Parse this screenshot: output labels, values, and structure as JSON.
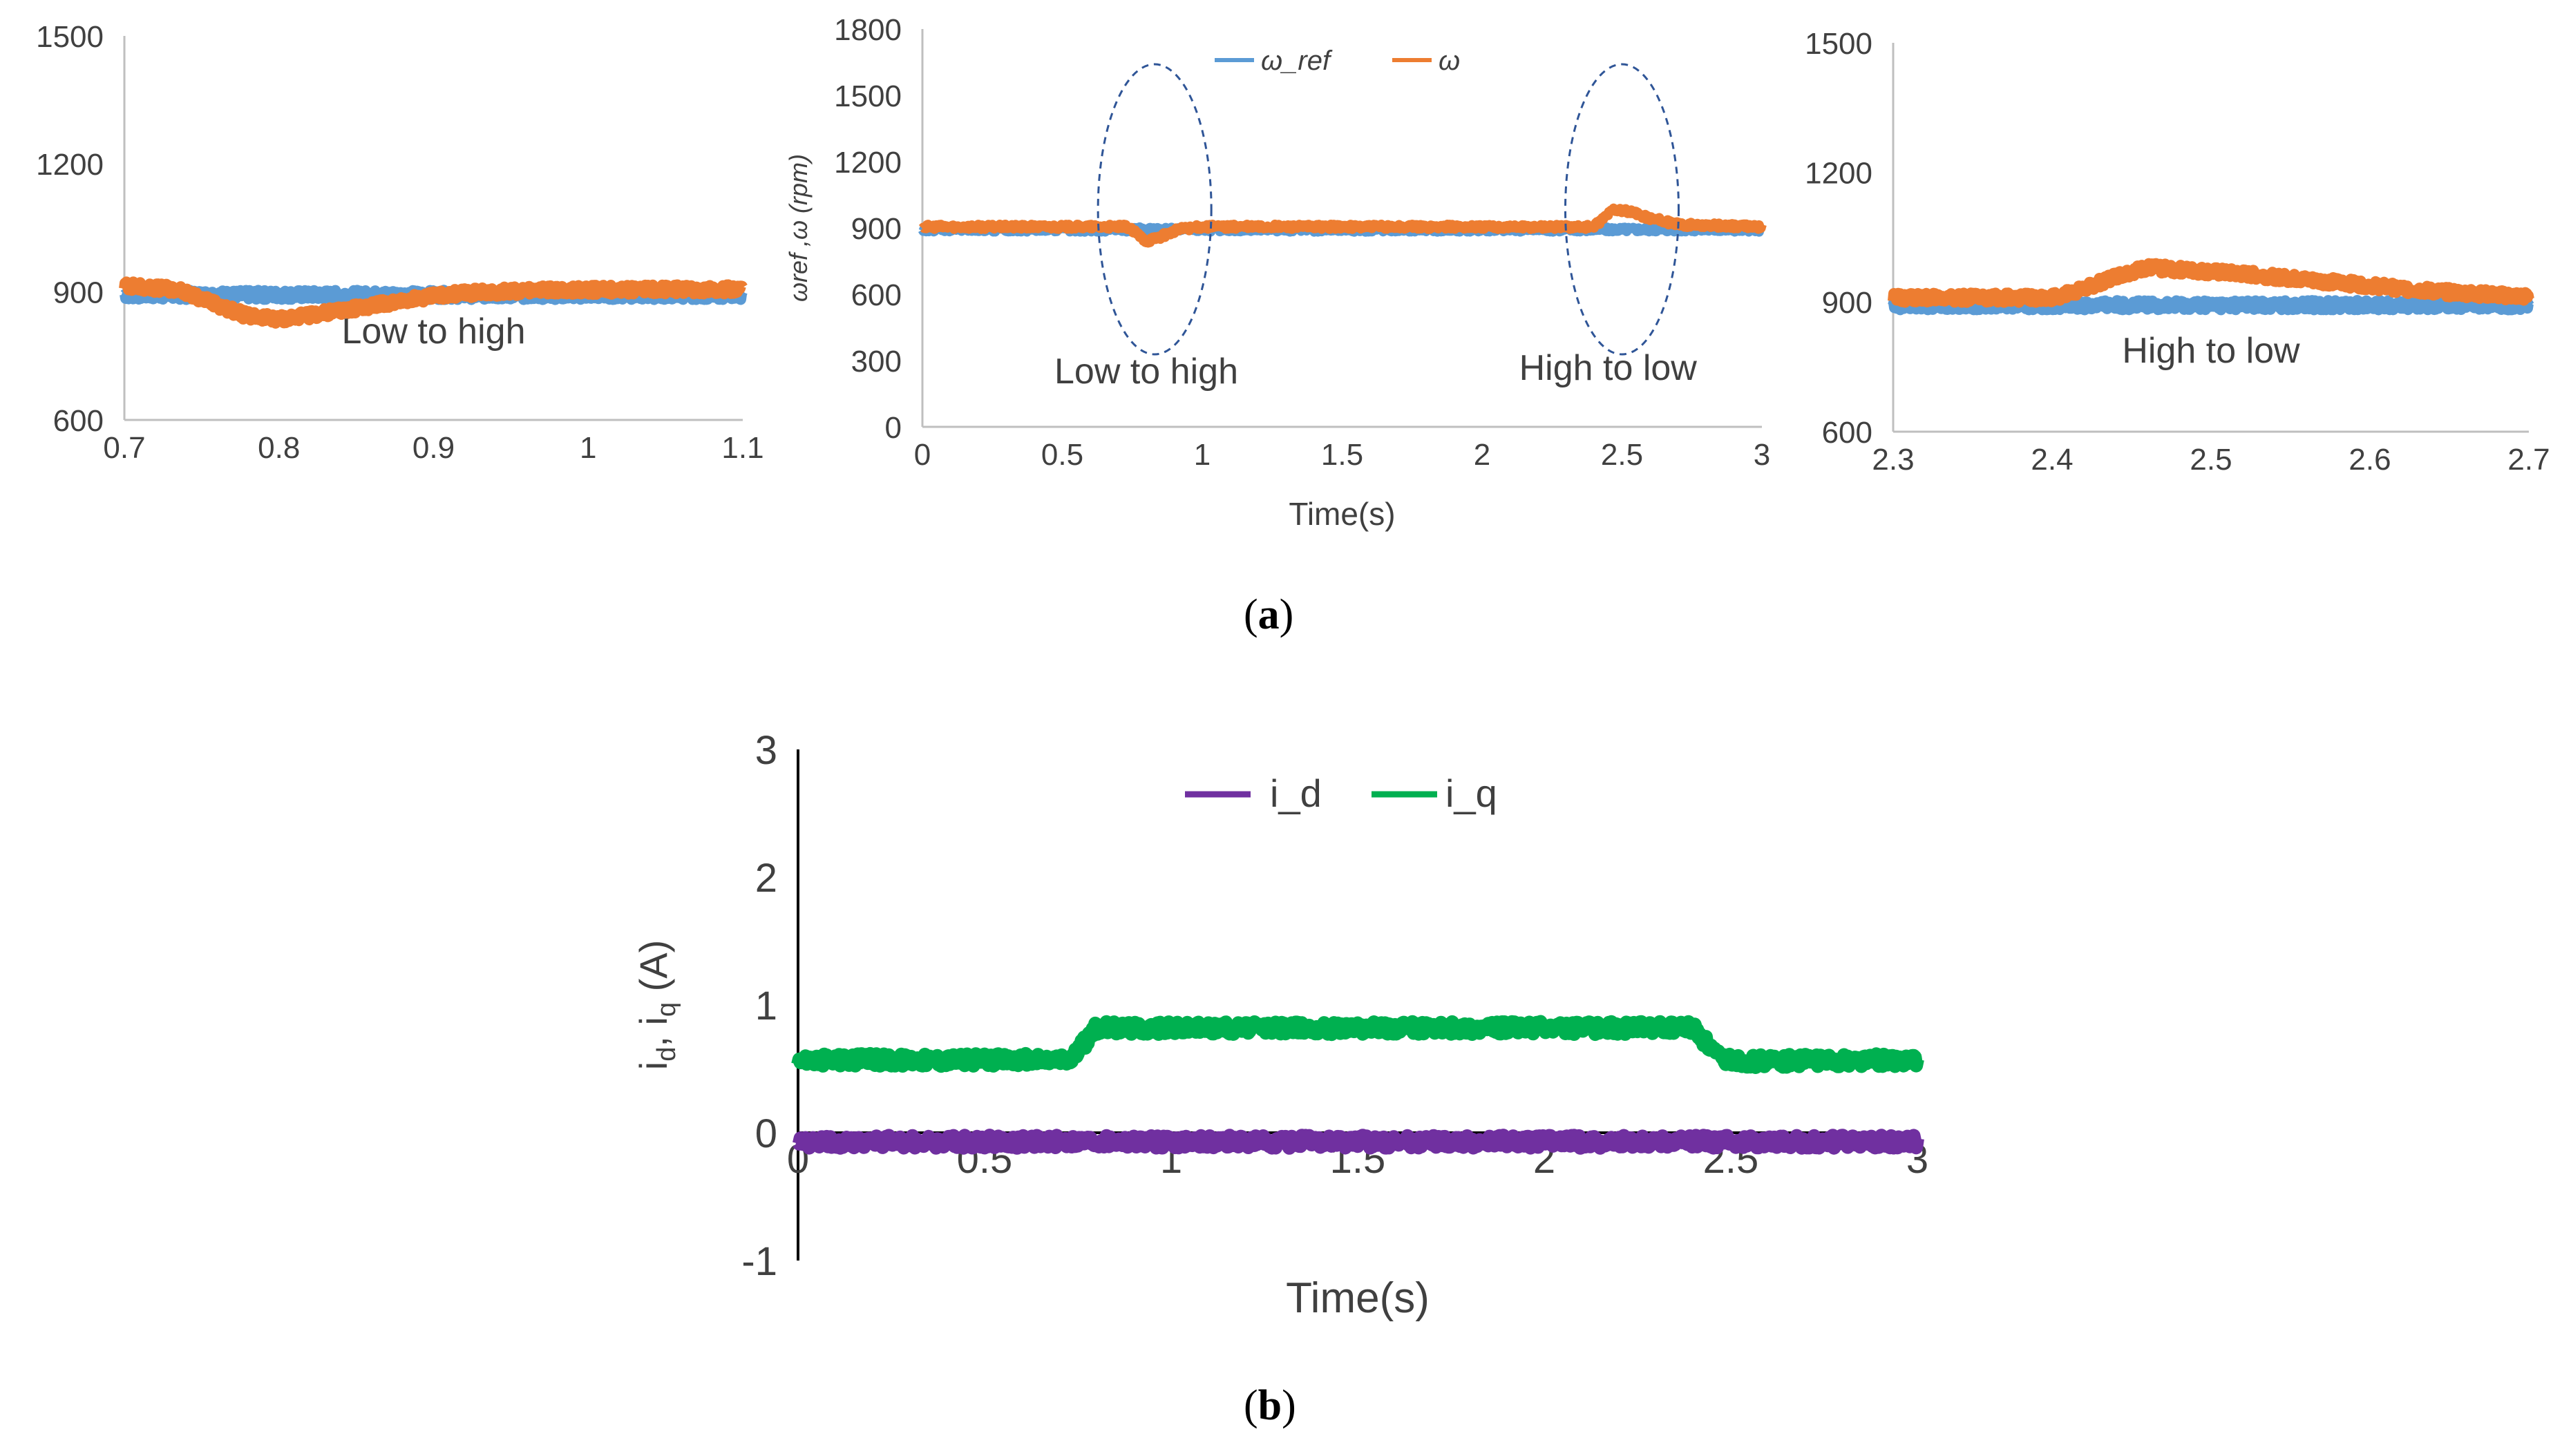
{
  "colors": {
    "omega_ref": "#5b9bd5",
    "omega": "#ed7d31",
    "i_d": "#7030a0",
    "i_q": "#00b050",
    "axis": "#bfbfbf",
    "text": "#404040",
    "ellipse": "#2f5597"
  },
  "captions": {
    "a": {
      "open": "(",
      "letter": "a",
      "close": ")"
    },
    "b": {
      "open": "(",
      "letter": "b",
      "close": ")"
    }
  },
  "chart_data": [
    {
      "id": "zoom-low-to-high",
      "type": "line",
      "title": "",
      "xlabel": "",
      "ylabel": "",
      "xlim": [
        0.7,
        1.1
      ],
      "ylim": [
        600,
        1500
      ],
      "x_ticks": [
        "0.7",
        "0.8",
        "0.9",
        "1",
        "1.1"
      ],
      "y_ticks": [
        "600",
        "900",
        "1200",
        "1500"
      ],
      "annotation": "Low to high",
      "series": [
        {
          "name": "ω_ref",
          "points": [
            [
              0.7,
              893
            ],
            [
              1.1,
              893
            ]
          ]
        },
        {
          "name": "ω",
          "points": [
            [
              0.7,
              915
            ],
            [
              0.735,
              905
            ],
            [
              0.76,
              870
            ],
            [
              0.78,
              843
            ],
            [
              0.8,
              836
            ],
            [
              0.82,
              845
            ],
            [
              0.85,
              862
            ],
            [
              0.88,
              880
            ],
            [
              0.91,
              895
            ],
            [
              0.95,
              902
            ],
            [
              1.0,
              905
            ],
            [
              1.05,
              906
            ],
            [
              1.1,
              906
            ]
          ]
        }
      ]
    },
    {
      "id": "speed-response",
      "type": "line",
      "title": "",
      "xlabel": "Time(s)",
      "ylabel": "ωref ,ω (rpm)",
      "xlim": [
        0,
        3
      ],
      "ylim": [
        0,
        1800
      ],
      "x_ticks": [
        "0",
        "0.5",
        "1",
        "1.5",
        "2",
        "2.5",
        "3"
      ],
      "y_ticks": [
        "0",
        "300",
        "600",
        "900",
        "1200",
        "1500",
        "1800"
      ],
      "legend": [
        "ω_ref",
        "ω"
      ],
      "annotations": [
        "Low to high",
        "High to low"
      ],
      "series": [
        {
          "name": "ω_ref",
          "points": [
            [
              0,
              893
            ],
            [
              3,
              893
            ]
          ]
        },
        {
          "name": "ω",
          "points": [
            [
              0,
              905
            ],
            [
              0.73,
              905
            ],
            [
              0.76,
              880
            ],
            [
              0.8,
              840
            ],
            [
              0.85,
              860
            ],
            [
              0.92,
              895
            ],
            [
              1.0,
              905
            ],
            [
              2.4,
              905
            ],
            [
              2.43,
              940
            ],
            [
              2.47,
              985
            ],
            [
              2.52,
              975
            ],
            [
              2.6,
              945
            ],
            [
              2.7,
              915
            ],
            [
              3.0,
              905
            ]
          ]
        }
      ]
    },
    {
      "id": "zoom-high-to-low",
      "type": "line",
      "title": "",
      "xlabel": "",
      "ylabel": "",
      "xlim": [
        2.3,
        2.7
      ],
      "ylim": [
        600,
        1500
      ],
      "x_ticks": [
        "2.3",
        "2.4",
        "2.5",
        "2.6",
        "2.7"
      ],
      "y_ticks": [
        "600",
        "900",
        "1200",
        "1500"
      ],
      "annotation": "High to low",
      "series": [
        {
          "name": "ω_ref",
          "points": [
            [
              2.3,
              893
            ],
            [
              2.7,
              893
            ]
          ]
        },
        {
          "name": "ω",
          "points": [
            [
              2.3,
              910
            ],
            [
              2.4,
              910
            ],
            [
              2.42,
              930
            ],
            [
              2.44,
              960
            ],
            [
              2.46,
              980
            ],
            [
              2.48,
              975
            ],
            [
              2.52,
              965
            ],
            [
              2.58,
              945
            ],
            [
              2.64,
              925
            ],
            [
              2.7,
              912
            ]
          ]
        }
      ]
    },
    {
      "id": "current-response",
      "type": "line",
      "title": "",
      "xlabel": "Time(s)",
      "ylabel": "id, iq (A)",
      "xlim": [
        0,
        3
      ],
      "ylim": [
        -1,
        3
      ],
      "x_ticks": [
        "0",
        "0.5",
        "1",
        "1.5",
        "2",
        "2.5",
        "3"
      ],
      "y_ticks": [
        "-1",
        "0",
        "1",
        "2",
        "3"
      ],
      "legend": [
        "i_d",
        "i_q"
      ],
      "series": [
        {
          "name": "i_d",
          "points": [
            [
              0,
              -0.07
            ],
            [
              3,
              -0.07
            ]
          ]
        },
        {
          "name": "i_q",
          "points": [
            [
              0,
              0.57
            ],
            [
              0.73,
              0.57
            ],
            [
              0.8,
              0.82
            ],
            [
              2.4,
              0.82
            ],
            [
              2.47,
              0.58
            ],
            [
              2.55,
              0.56
            ],
            [
              3.0,
              0.57
            ]
          ]
        }
      ]
    }
  ]
}
